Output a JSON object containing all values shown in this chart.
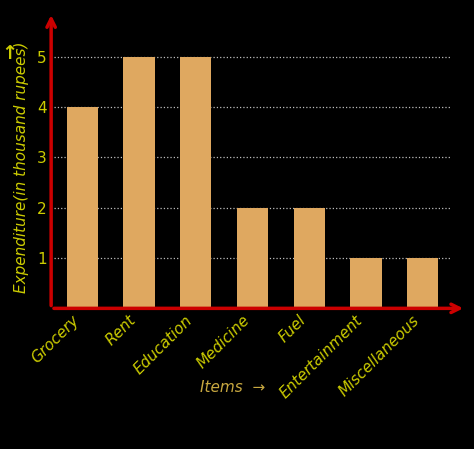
{
  "categories": [
    "Grocery",
    "Rent",
    "Education",
    "Medicine",
    "Fuel",
    "Entertainment",
    "Miscellaneous"
  ],
  "values": [
    4,
    5,
    5,
    2,
    2,
    1,
    1
  ],
  "bar_color": "#DFA860",
  "background_color": "#000000",
  "text_color": "#CCCC00",
  "axis_color": "#CC0000",
  "ylabel_color": "#CCCC00",
  "xlabel_color": "#C8A840",
  "grid_color": "#FFFFFF",
  "ylabel": "Expenditure(in thousand rupees)",
  "xlabel": "Items",
  "ylim": [
    0,
    5.6
  ],
  "yticks": [
    1,
    2,
    3,
    4,
    5
  ],
  "tick_fontsize": 11,
  "label_fontsize": 11,
  "bar_width": 0.55,
  "figsize": [
    4.74,
    4.49
  ],
  "dpi": 100
}
